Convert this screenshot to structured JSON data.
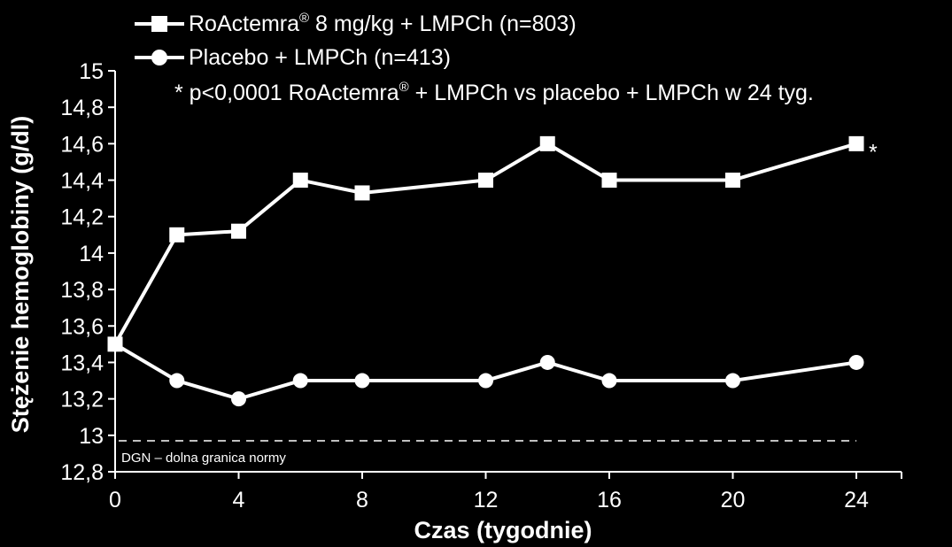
{
  "chart_data": {
    "type": "line",
    "title": "",
    "xlabel": "Czas (tygodnie)",
    "ylabel": "Stężenie hemoglobiny (g/dl)",
    "xlim": [
      0,
      24
    ],
    "ylim": [
      12.8,
      15
    ],
    "x_ticks": [
      0,
      4,
      8,
      12,
      16,
      20,
      24
    ],
    "x_tick_labels": [
      "0",
      "4",
      "8",
      "12",
      "16",
      "20",
      "24"
    ],
    "y_ticks": [
      12.8,
      13,
      13.2,
      13.4,
      13.6,
      13.8,
      14,
      14.2,
      14.4,
      14.6,
      14.8,
      15
    ],
    "y_tick_labels": [
      "12,8",
      "13",
      "13,2",
      "13,4",
      "13,6",
      "13,8",
      "14",
      "14,2",
      "14,4",
      "14,6",
      "14,8",
      "15"
    ],
    "grid": false,
    "legend_position": "top",
    "series": [
      {
        "name": "RoActemra® 8 mg/kg + LMPCh (n=803)",
        "legend_main": "RoActemra",
        "legend_sup": "®",
        "legend_rest": " 8 mg/kg + LMPCh (n=803)",
        "marker": "square",
        "color": "#ffffff",
        "x": [
          0,
          2,
          4,
          6,
          8,
          12,
          14,
          16,
          20,
          24
        ],
        "values": [
          13.5,
          14.1,
          14.12,
          14.4,
          14.33,
          14.4,
          14.6,
          14.4,
          14.4,
          14.6
        ]
      },
      {
        "name": "Placebo + LMPCh (n=413)",
        "legend_main": "Placebo + LMPCh (n=413)",
        "legend_sup": "",
        "legend_rest": "",
        "marker": "circle",
        "color": "#ffffff",
        "x": [
          0,
          2,
          4,
          6,
          8,
          12,
          14,
          16,
          20,
          24
        ],
        "values": [
          13.5,
          13.3,
          13.2,
          13.3,
          13.3,
          13.3,
          13.4,
          13.3,
          13.3,
          13.4
        ]
      }
    ],
    "reference_line": {
      "value": 12.97,
      "label": "DGN – dolna granica normy",
      "style": "dashed"
    },
    "annotations": {
      "star": "*",
      "footnote_a": "* p<0,0001 RoActemra",
      "footnote_sup": "®",
      "footnote_b": " + LMPCh vs placebo + LMPCh w 24 tyg."
    }
  }
}
